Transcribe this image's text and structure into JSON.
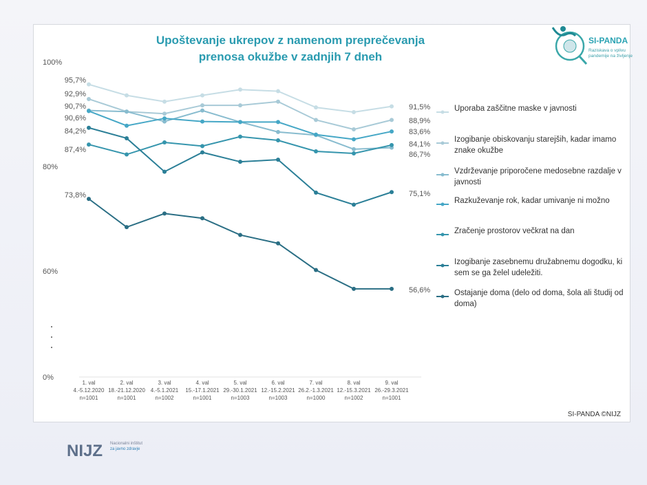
{
  "chart_data": {
    "type": "line",
    "title": "Upoštevanje ukrepov z namenom preprečevanja prenosa okužbe v zadnjih 7 dneh",
    "title_lines": [
      "Upoštevanje ukrepov z namenom preprečevanja",
      "prenosa okužbe v zadnjih 7 dneh"
    ],
    "y_ticks": [
      "100%",
      "80%",
      "60%",
      "0%"
    ],
    "ylim": [
      0,
      100
    ],
    "y_axis_break": true,
    "grid": false,
    "legend_position": "right",
    "categories": [
      [
        "1. val",
        "4.-5.12.2020",
        "n=1001"
      ],
      [
        "2. val",
        "18.-21.12.2020",
        "n=1001"
      ],
      [
        "3. val",
        "4.-5.1.2021",
        "n=1002"
      ],
      [
        "4. val",
        "15.-17.1.2021",
        "n=1001"
      ],
      [
        "5. val",
        "29.-30.1.2021",
        "n=1003"
      ],
      [
        "6. val",
        "12.-15.2.2021",
        "n=1003"
      ],
      [
        "7. val",
        "26.2.-1.3.2021",
        "n=1000"
      ],
      [
        "8. val",
        "12.-15.3.2021",
        "n=1002"
      ],
      [
        "9. val",
        "26.-29.3.2021",
        "n=1001"
      ]
    ],
    "series": [
      {
        "name": "Uporaba zaščitne maske v javnosti",
        "color": "#c6dde5",
        "values": [
          95.7,
          93.6,
          92.4,
          93.6,
          94.7,
          94.4,
          91.3,
          90.4,
          91.5
        ],
        "start_label": "95,7%",
        "end_label": "91,5%"
      },
      {
        "name": "Izogibanje obiskovanju starejših, kadar imamo znake okužbe",
        "color": "#a8cad7",
        "values": [
          92.9,
          90.5,
          90.1,
          91.7,
          91.7,
          92.4,
          88.9,
          87.1,
          88.9
        ],
        "start_label": "92,9%",
        "end_label": "88,9%"
      },
      {
        "name": "Vzdrževanje priporočene medosebne razdalje v javnosti",
        "color": "#88bccf",
        "values": [
          90.7,
          90.5,
          88.6,
          90.7,
          88.5,
          86.6,
          86.0,
          83.3,
          83.6
        ],
        "start_label": "90,7%",
        "end_label": "83,6%"
      },
      {
        "name": "Razkuževanje rok, kadar umivanje ni možno",
        "color": "#45a7c6",
        "values": [
          90.6,
          87.8,
          89.2,
          88.6,
          88.5,
          88.5,
          86.1,
          85.2,
          86.7
        ],
        "start_label": "90,6%",
        "end_label": "86,7%"
      },
      {
        "name": "Zračenje prostorov večkrat na dan",
        "color": "#3595ad",
        "values": [
          84.2,
          82.3,
          84.6,
          83.9,
          85.7,
          85.0,
          82.9,
          82.5,
          84.1
        ],
        "start_label": "84,2%",
        "end_label": "84,1%"
      },
      {
        "name": "Izogibanje zasebnemu družabnemu dogodku, ki sem se ga želel udeležiti.",
        "color": "#2b7f97",
        "values": [
          87.4,
          85.4,
          79.0,
          82.7,
          80.9,
          81.3,
          75.0,
          72.7,
          75.1
        ],
        "start_label": "87,4%",
        "end_label": "75,1%"
      },
      {
        "name": "Ostajanje doma (delo od doma, šola ali študij od doma)",
        "color": "#2a6e84",
        "values": [
          73.8,
          68.4,
          71.0,
          70.1,
          66.9,
          65.3,
          60.2,
          56.6,
          56.6
        ],
        "start_label": "73,8%",
        "end_label": "56,6%"
      }
    ],
    "legend_lines": [
      [
        "Uporaba zaščitne maske v javnosti"
      ],
      [
        "Izogibanje obiskovanju starejših, kadar imamo",
        "znake okužbe"
      ],
      [
        "Vzdrževanje priporočene medosebne razdalje v",
        "javnosti"
      ],
      [
        "Razkuževanje rok, kadar umivanje ni možno"
      ],
      [
        "Zračenje prostorov večkrat na dan"
      ],
      [
        "Izogibanje zasebnemu družabnemu dogodku, ki",
        "sem se ga želel udeležiti."
      ],
      [
        "Ostajanje doma (delo od doma, šola ali študij od",
        "doma)"
      ]
    ]
  },
  "logo": {
    "name": "SI-PANDA",
    "tagline": [
      "Raziskava o vplivu",
      "pandemije na življenje"
    ]
  },
  "credit": "SI-PANDA ©NIJZ",
  "footer_logo": {
    "name": "NIJZ",
    "tagline": [
      "Nacionalni inštitut",
      "za javno zdravje"
    ]
  },
  "accent": "#2a9bb0"
}
